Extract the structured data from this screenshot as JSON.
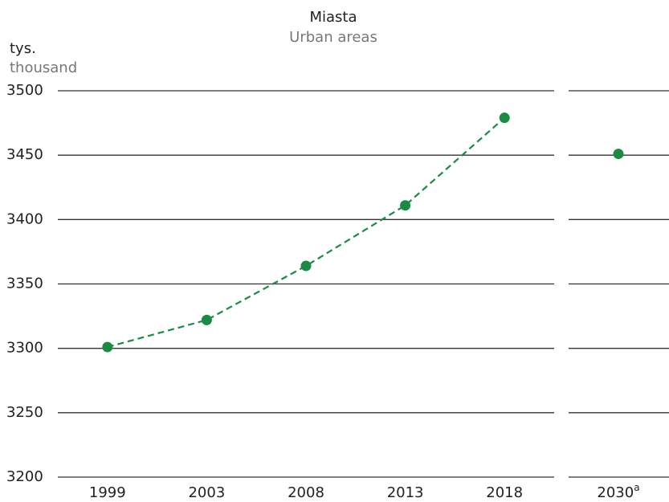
{
  "chart_data": {
    "type": "line",
    "title": "Miasta",
    "subtitle": "Urban areas",
    "y_label": "tys.",
    "y_label_secondary": "thousand",
    "categories": [
      "1999",
      "2003",
      "2008",
      "2013",
      "2018",
      "2030"
    ],
    "category_superscripts": [
      null,
      null,
      null,
      null,
      null,
      "a"
    ],
    "series": [
      {
        "color": "#1a8a45",
        "dashed": true,
        "values": [
          3301,
          3322,
          3364,
          3411,
          3479,
          null
        ]
      },
      {
        "color": "#1a8a45",
        "dashed": false,
        "values": [
          null,
          null,
          null,
          null,
          null,
          3451
        ]
      }
    ],
    "ylim": [
      3200,
      3500
    ],
    "yticks": [
      3200,
      3250,
      3300,
      3350,
      3400,
      3450,
      3500
    ],
    "grid": true
  }
}
